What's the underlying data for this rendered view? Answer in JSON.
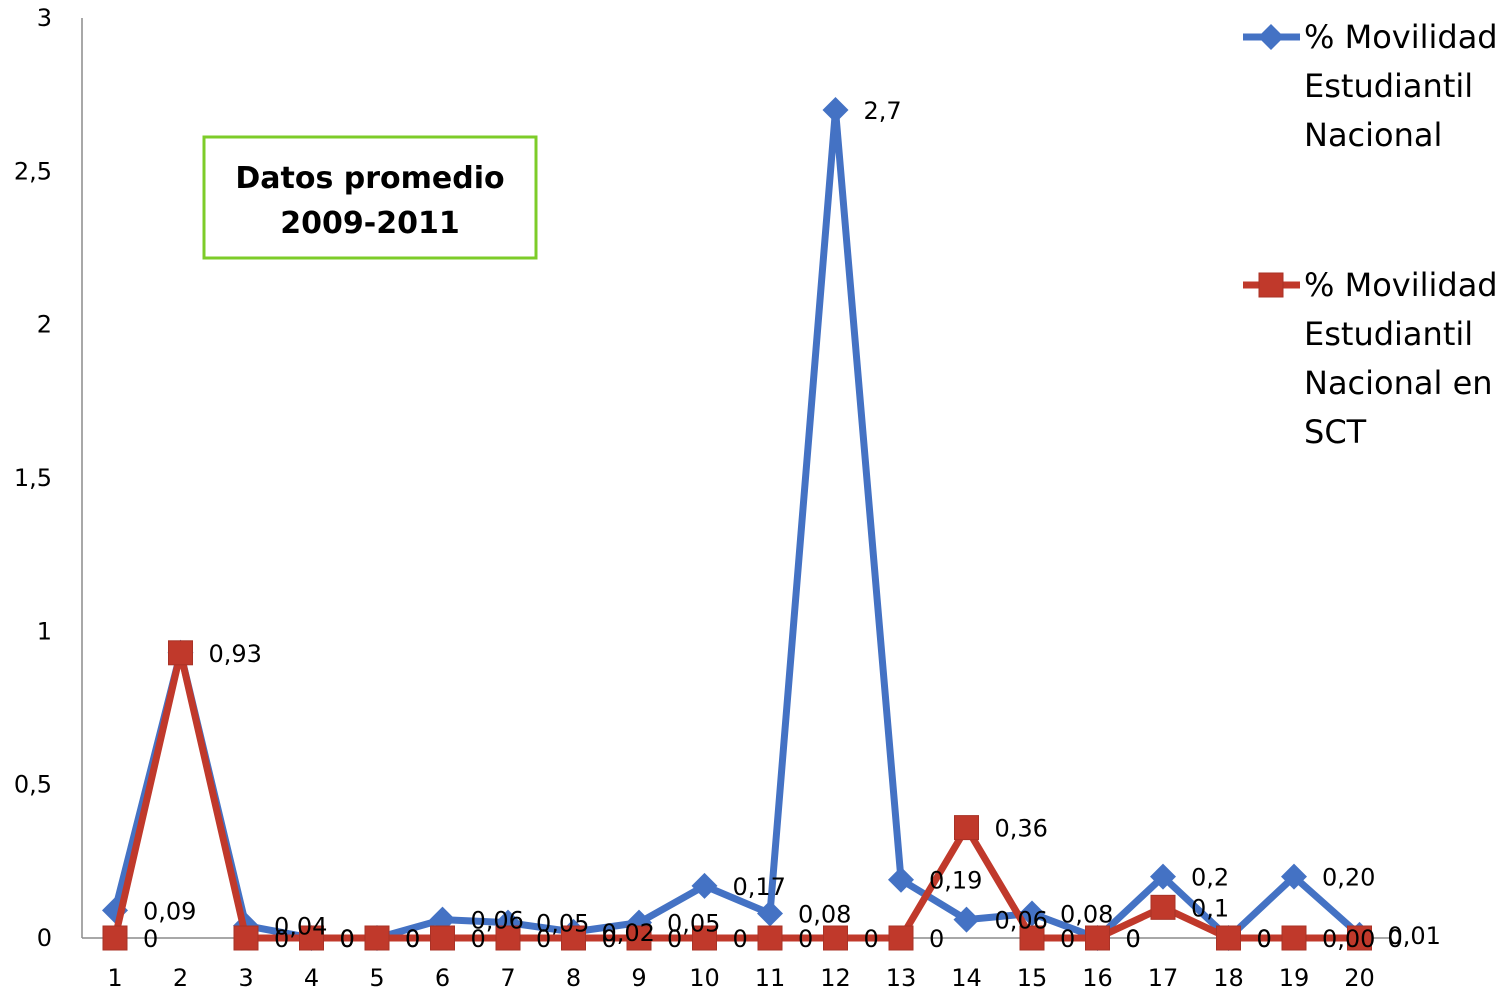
{
  "chart_data": {
    "type": "line",
    "title": "",
    "xlabel": "",
    "ylabel": "",
    "x": [
      "1",
      "2",
      "3",
      "4",
      "5",
      "6",
      "7",
      "8",
      "9",
      "10",
      "11",
      "12",
      "13",
      "14",
      "15",
      "16",
      "17",
      "18",
      "19",
      "20"
    ],
    "yticks": [
      "0",
      "0,5",
      "1",
      "1,5",
      "2",
      "2,5",
      "3"
    ],
    "ylim": [
      0,
      3
    ],
    "grid": false,
    "legend_position": "top-right",
    "annotation": {
      "lines": [
        "Datos promedio",
        "2009-2011"
      ],
      "border_color": "#7dcc29"
    },
    "series": [
      {
        "name_lines": [
          "% Movilidad",
          "Estudiantil",
          "Nacional"
        ],
        "color": "#4472c4",
        "marker": "diamond",
        "values": [
          0.09,
          0.93,
          0.04,
          0,
          0,
          0.06,
          0.05,
          0.02,
          0.05,
          0.17,
          0.08,
          2.7,
          0.19,
          0.06,
          0.08,
          0,
          0.2,
          0,
          0.2,
          0.01
        ],
        "labels": [
          "0,09",
          "",
          "0,04",
          "0",
          "0",
          "0,06",
          "0,05",
          "0,02",
          "0,05",
          "0,17",
          "0,08",
          "2,7",
          "0,19",
          "0,06",
          "0,08",
          "0",
          "0,2",
          "0",
          "0,20",
          "0,01"
        ]
      },
      {
        "name_lines": [
          "% Movilidad",
          "Estudiantil",
          "Nacional en",
          "SCT"
        ],
        "color": "#c0392b",
        "marker": "square",
        "values": [
          0,
          0.93,
          0,
          0,
          0,
          0,
          0,
          0,
          0,
          0,
          0,
          0,
          0,
          0.36,
          0,
          0,
          0.1,
          0,
          0,
          0
        ],
        "labels": [
          "0",
          "0,93",
          "0",
          "0",
          "0",
          "0",
          "0",
          "0",
          "0",
          "0",
          "0",
          "0",
          "0",
          "0,36",
          "0",
          "0",
          "0,1",
          "0",
          "0,00",
          "0"
        ]
      }
    ]
  }
}
